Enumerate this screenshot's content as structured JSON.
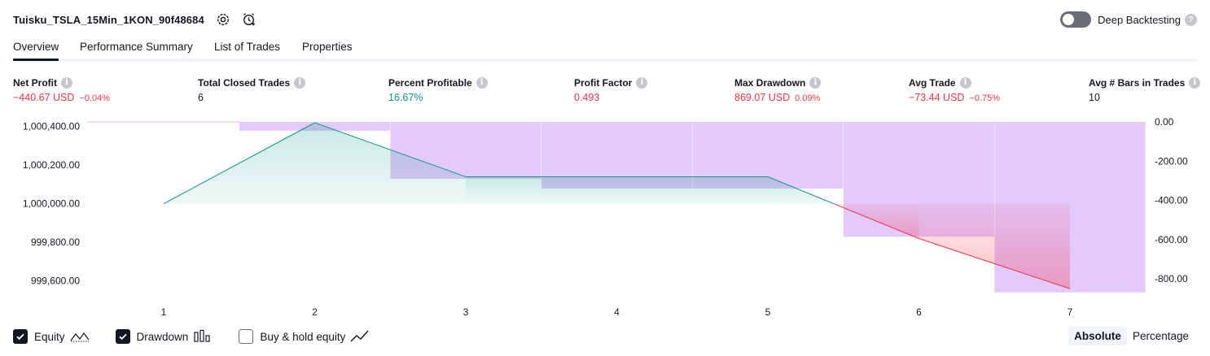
{
  "header": {
    "title": "Tuisku_TSLA_15Min_1KON_90f48684",
    "deep_backtesting_label": "Deep Backtesting"
  },
  "tabs": [
    {
      "label": "Overview",
      "active": true
    },
    {
      "label": "Performance Summary",
      "active": false
    },
    {
      "label": "List of Trades",
      "active": false
    },
    {
      "label": "Properties",
      "active": false
    }
  ],
  "metrics": [
    {
      "label": "Net Profit",
      "value": "−440.67 USD",
      "pct": "−0.04%",
      "tone": "neg"
    },
    {
      "label": "Total Closed Trades",
      "value": "6",
      "pct": "",
      "tone": "neutral"
    },
    {
      "label": "Percent Profitable",
      "value": "16.67%",
      "pct": "",
      "tone": "pos"
    },
    {
      "label": "Profit Factor",
      "value": "0.493",
      "pct": "",
      "tone": "neg"
    },
    {
      "label": "Max Drawdown",
      "value": "869.07 USD",
      "pct": "0.09%",
      "tone": "neg"
    },
    {
      "label": "Avg Trade",
      "value": "−73.44 USD",
      "pct": "−0.75%",
      "tone": "neg"
    },
    {
      "label": "Avg # Bars in Trades",
      "value": "10",
      "pct": "",
      "tone": "neutral"
    }
  ],
  "chart_data": {
    "type": "area",
    "x": [
      1,
      2,
      3,
      4,
      5,
      6,
      7
    ],
    "x_ticks": [
      "1",
      "2",
      "3",
      "4",
      "5",
      "6",
      "7"
    ],
    "equity": {
      "values": [
        1000000.0,
        1000420.0,
        1000140.0,
        1000140.0,
        1000140.0,
        999820.0,
        999560.0
      ],
      "baseline": 1000000.0,
      "color_up": "#089981",
      "color_down": "#f23645",
      "y_ticks": [
        "1,000,400.00",
        "1,000,200.00",
        "1,000,000.00",
        "999,800.00",
        "999,600.00"
      ],
      "y_tick_values": [
        1000400,
        1000200,
        1000000,
        999800,
        999600
      ],
      "ylim": [
        999540,
        1000424
      ]
    },
    "drawdown": {
      "values": [
        0.0,
        -45.0,
        -290.0,
        -340.0,
        -340.0,
        -585.0,
        -869.07
      ],
      "color": "#e1c6fc",
      "y_ticks": [
        "0.00",
        "-200.00",
        "-400.00",
        "-600.00",
        "-800.00"
      ],
      "y_tick_values": [
        0,
        -200,
        -400,
        -600,
        -800
      ],
      "ylim": [
        -870,
        0
      ]
    },
    "grid": false
  },
  "legend": {
    "items": [
      {
        "label": "Equity",
        "checked": true,
        "icon": "equity-line-icon"
      },
      {
        "label": "Drawdown",
        "checked": true,
        "icon": "drawdown-bars-icon"
      },
      {
        "label": "Buy & hold equity",
        "checked": false,
        "icon": "buy-hold-line-icon"
      }
    ]
  },
  "mode": {
    "absolute_label": "Absolute",
    "percentage_label": "Percentage",
    "selected": "absolute"
  }
}
